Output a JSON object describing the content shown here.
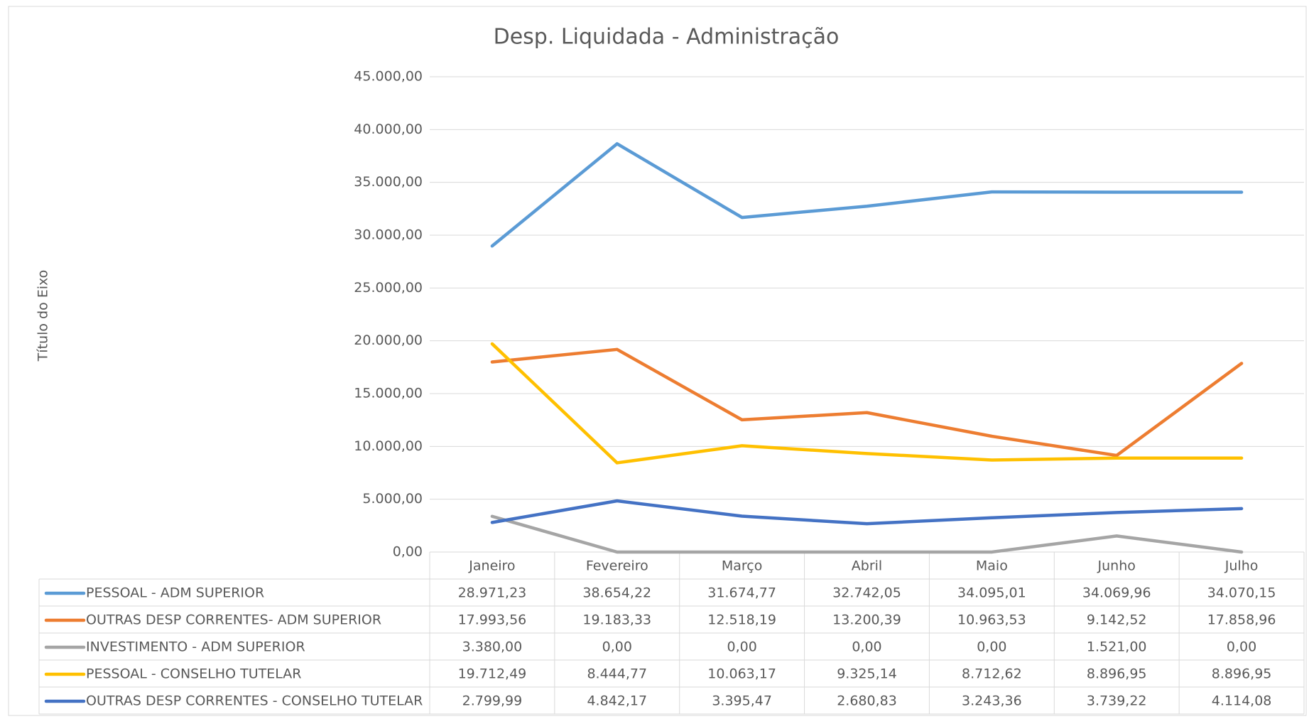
{
  "chart_data": {
    "type": "line",
    "title": "Desp. Liquidada - Administração",
    "y_label": "Título do Eixo",
    "categories": [
      "Janeiro",
      "Fevereiro",
      "Março",
      "Abril",
      "Maio",
      "Junho",
      "Julho"
    ],
    "ylim": [
      0,
      45000
    ],
    "yticks": [
      {
        "value": 0,
        "label": "0,00"
      },
      {
        "value": 5000,
        "label": "5.000,00"
      },
      {
        "value": 10000,
        "label": "10.000,00"
      },
      {
        "value": 15000,
        "label": "15.000,00"
      },
      {
        "value": 20000,
        "label": "20.000,00"
      },
      {
        "value": 25000,
        "label": "25.000,00"
      },
      {
        "value": 30000,
        "label": "30.000,00"
      },
      {
        "value": 35000,
        "label": "35.000,00"
      },
      {
        "value": 40000,
        "label": "40.000,00"
      },
      {
        "value": 45000,
        "label": "45.000,00"
      }
    ],
    "grid": true,
    "series": [
      {
        "name": "PESSOAL - ADM SUPERIOR",
        "color": "#5b9bd5",
        "values": [
          28971.23,
          38654.22,
          31674.77,
          32742.05,
          34095.01,
          34069.96,
          34070.15
        ],
        "value_labels": [
          "28.971,23",
          "38.654,22",
          "31.674,77",
          "32.742,05",
          "34.095,01",
          "34.069,96",
          "34.070,15"
        ]
      },
      {
        "name": "OUTRAS DESP CORRENTES- ADM SUPERIOR",
        "color": "#ed7d31",
        "values": [
          17993.56,
          19183.33,
          12518.19,
          13200.39,
          10963.53,
          9142.52,
          17858.96
        ],
        "value_labels": [
          "17.993,56",
          "19.183,33",
          "12.518,19",
          "13.200,39",
          "10.963,53",
          "9.142,52",
          "17.858,96"
        ]
      },
      {
        "name": "INVESTIMENTO - ADM SUPERIOR",
        "color": "#a5a5a5",
        "values": [
          3380,
          0,
          0,
          0,
          0,
          1521,
          0
        ],
        "value_labels": [
          "3.380,00",
          "0,00",
          "0,00",
          "0,00",
          "0,00",
          "1.521,00",
          "0,00"
        ]
      },
      {
        "name": "PESSOAL - CONSELHO TUTELAR",
        "color": "#ffc000",
        "values": [
          19712.49,
          8444.77,
          10063.17,
          9325.14,
          8712.62,
          8896.95,
          8896.95
        ],
        "value_labels": [
          "19.712,49",
          "8.444,77",
          "10.063,17",
          "9.325,14",
          "8.712,62",
          "8.896,95",
          "8.896,95"
        ]
      },
      {
        "name": "OUTRAS DESP CORRENTES - CONSELHO TUTELAR",
        "color": "#4472c4",
        "values": [
          2799.99,
          4842.17,
          3395.47,
          2680.83,
          3243.36,
          3739.22,
          4114.08
        ],
        "value_labels": [
          "2.799,99",
          "4.842,17",
          "3.395,47",
          "2.680,83",
          "3.243,36",
          "3.739,22",
          "4.114,08"
        ]
      }
    ]
  }
}
